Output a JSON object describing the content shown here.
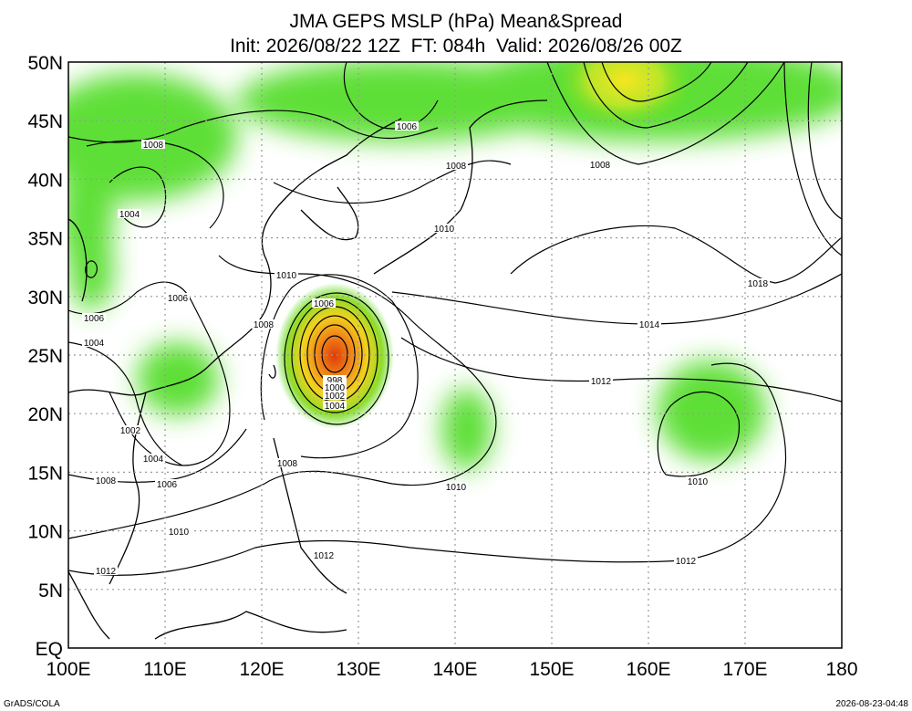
{
  "title": "JMA GEPS MSLP (hPa) Mean&Spread",
  "subtitle": "Init: 2026/08/22 12Z  FT: 084h  Valid: 2026/08/26 00Z",
  "lat_labels": [
    "50N",
    "45N",
    "40N",
    "35N",
    "30N",
    "25N",
    "20N",
    "15N",
    "10N",
    "5N",
    "EQ"
  ],
  "lon_labels": [
    "100E",
    "110E",
    "120E",
    "130E",
    "140E",
    "150E",
    "160E",
    "170E",
    "180"
  ],
  "contour_labels": [
    "1008",
    "1004",
    "1006",
    "1008",
    "1010",
    "1008",
    "1010",
    "1006",
    "1006",
    "1004",
    "1008",
    "1006",
    "998",
    "1000",
    "1002",
    "1004",
    "1014",
    "1018",
    "1012",
    "1002",
    "1004",
    "1008",
    "1006",
    "1008",
    "1010",
    "1010",
    "1010",
    "1012",
    "1012",
    "1012"
  ],
  "footer": {
    "left": "GrADS/COLA",
    "right": "2026-08-23-04:48"
  }
}
